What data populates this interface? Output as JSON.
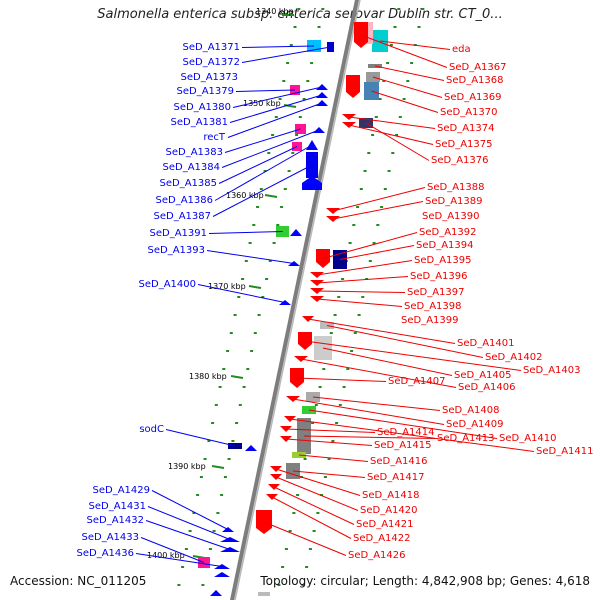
{
  "header": {
    "title": "Salmonella enterica subsp. enterica serovar Dublin str. CT_0..."
  },
  "footer": {
    "accession": "Accession: NC_011205",
    "summary": "Topology: circular; Length: 4,842,908 bp; Genes: 4,618"
  },
  "scale_labels": [
    {
      "text": "1340 kbp"
    },
    {
      "text": "1350 kbp"
    },
    {
      "text": "1360 kbp"
    },
    {
      "text": "1370 kbp"
    },
    {
      "text": "1380 kbp"
    },
    {
      "text": "1390 kbp"
    },
    {
      "text": "1400 kbp"
    }
  ],
  "left_genes": [
    {
      "text": "SeD_A1371"
    },
    {
      "text": "SeD_A1372"
    },
    {
      "text": "SeD_A1373"
    },
    {
      "text": "SeD_A1379"
    },
    {
      "text": "SeD_A1380"
    },
    {
      "text": "SeD_A1381"
    },
    {
      "text": "recT"
    },
    {
      "text": "SeD_A1383"
    },
    {
      "text": "SeD_A1384"
    },
    {
      "text": "SeD_A1385"
    },
    {
      "text": "SeD_A1386"
    },
    {
      "text": "SeD_A1387"
    },
    {
      "text": "SeD_A1391"
    },
    {
      "text": "SeD_A1393"
    },
    {
      "text": "SeD_A1400"
    },
    {
      "text": "sodC"
    },
    {
      "text": "SeD_A1429"
    },
    {
      "text": "SeD_A1431"
    },
    {
      "text": "SeD_A1432"
    },
    {
      "text": "SeD_A1433"
    },
    {
      "text": "SeD_A1436"
    }
  ],
  "right_genes": [
    {
      "text": "eda"
    },
    {
      "text": "SeD_A1367"
    },
    {
      "text": "SeD_A1368"
    },
    {
      "text": "SeD_A1369"
    },
    {
      "text": "SeD_A1370"
    },
    {
      "text": "SeD_A1374"
    },
    {
      "text": "SeD_A1375"
    },
    {
      "text": "SeD_A1376"
    },
    {
      "text": "SeD_A1388"
    },
    {
      "text": "SeD_A1389"
    },
    {
      "text": "SeD_A1390"
    },
    {
      "text": "SeD_A1392"
    },
    {
      "text": "SeD_A1394"
    },
    {
      "text": "SeD_A1395"
    },
    {
      "text": "SeD_A1396"
    },
    {
      "text": "SeD_A1397"
    },
    {
      "text": "SeD_A1398"
    },
    {
      "text": "SeD_A1399"
    },
    {
      "text": "SeD_A1401"
    },
    {
      "text": "SeD_A1402"
    },
    {
      "text": "SeD_A1403"
    },
    {
      "text": "SeD_A1405"
    },
    {
      "text": "SeD_A1407"
    },
    {
      "text": "SeD_A1406"
    },
    {
      "text": "SeD_A1408"
    },
    {
      "text": "SeD_A1409"
    },
    {
      "text": "SeD_A1414"
    },
    {
      "text": "SeD_A1413"
    },
    {
      "text": "SeD_A1410"
    },
    {
      "text": "SeD_A1415"
    },
    {
      "text": "SeD_A1411"
    },
    {
      "text": "SeD_A1416"
    },
    {
      "text": "SeD_A1417"
    },
    {
      "text": "SeD_A1418"
    },
    {
      "text": "SeD_A1420"
    },
    {
      "text": "SeD_A1421"
    },
    {
      "text": "SeD_A1422"
    },
    {
      "text": "SeD_A1426"
    }
  ],
  "colors": {
    "forward_label": "#0000ee",
    "reverse_label": "#ee0000",
    "backbone": "#808080",
    "tick": "#228b22"
  }
}
